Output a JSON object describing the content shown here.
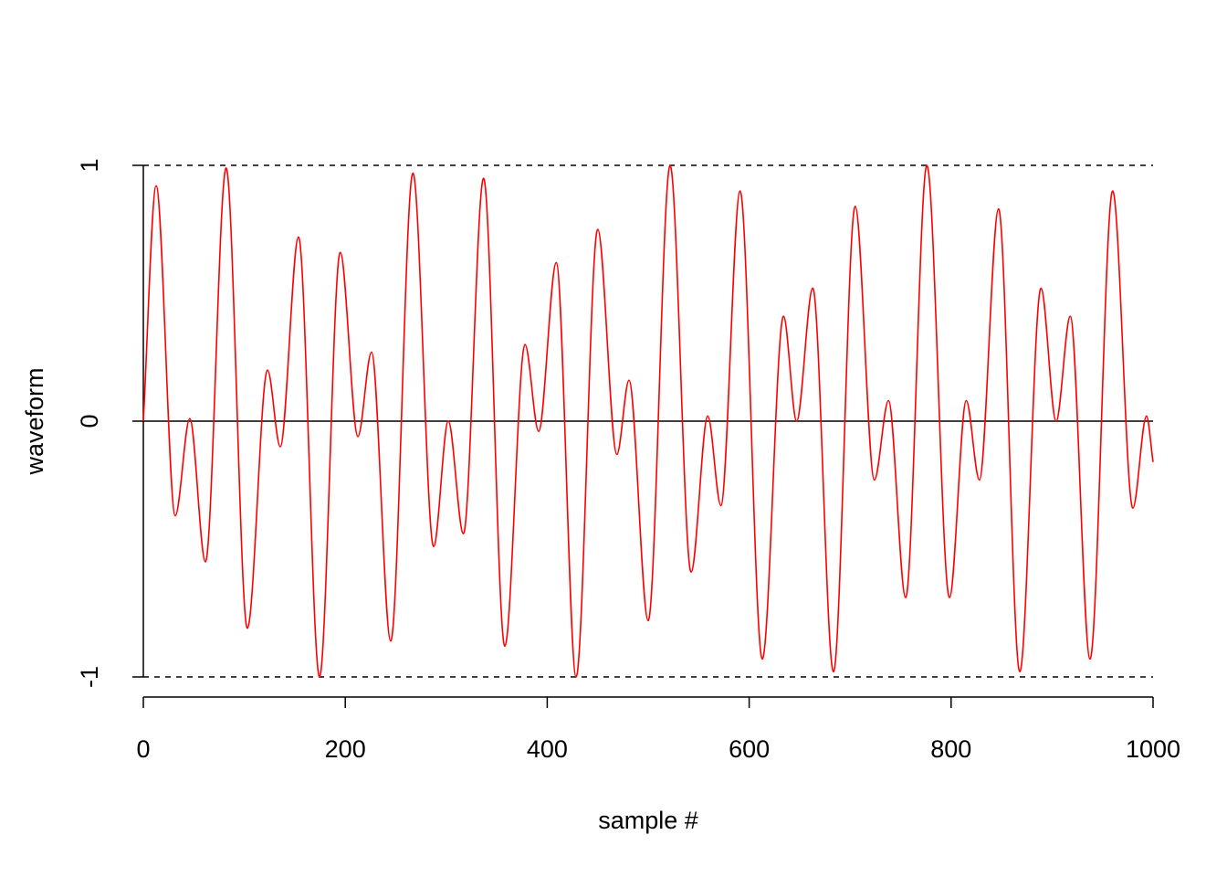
{
  "chart_data": {
    "type": "line",
    "x_label": "sample #",
    "y_label": "waveform",
    "x": [
      0,
      12.7,
      31.6,
      46,
      61.5,
      82,
      103,
      123,
      135.6,
      153.7,
      174.5,
      195,
      212.5,
      226,
      245,
      267,
      287.5,
      302,
      317,
      337,
      358,
      378,
      391.5,
      409,
      428.6,
      450,
      469,
      481,
      500,
      521.7,
      542.5,
      559,
      572,
      591,
      613,
      634,
      647,
      663,
      683.5,
      705,
      724,
      738,
      755,
      776,
      798.4,
      815,
      828,
      847,
      868,
      889,
      904,
      918,
      937.6,
      960,
      980,
      993.5,
      1000
    ],
    "series": [
      {
        "color": "#ff0000",
        "values": [
          0,
          0.92,
          -0.37,
          0.01,
          -0.55,
          0.99,
          -0.81,
          0.2,
          -0.1,
          0.72,
          -1.0,
          0.66,
          -0.06,
          0.27,
          -0.86,
          0.97,
          -0.49,
          0.0,
          -0.44,
          0.95,
          -0.88,
          0.3,
          -0.04,
          0.62,
          -1.0,
          0.75,
          -0.13,
          0.16,
          -0.78,
          1.0,
          -0.59,
          0.02,
          -0.33,
          0.9,
          -0.93,
          0.41,
          0.0,
          0.52,
          -0.98,
          0.84,
          -0.23,
          0.08,
          -0.69,
          1.0,
          -0.69,
          0.08,
          -0.23,
          0.83,
          -0.98,
          0.52,
          0.0,
          0.41,
          -0.93,
          0.9,
          -0.34,
          0.02,
          -0.16
        ]
      }
    ],
    "xlim": [
      0,
      1000
    ],
    "xticks": [
      0,
      200,
      400,
      600,
      800,
      1000
    ],
    "ylim": [
      -1,
      1
    ],
    "yticks": [
      -1,
      0,
      1
    ],
    "reference_lines": [
      {
        "y": 1,
        "style": "dashed"
      },
      {
        "y": 0,
        "style": "solid"
      },
      {
        "y": -1,
        "style": "dashed"
      }
    ]
  }
}
